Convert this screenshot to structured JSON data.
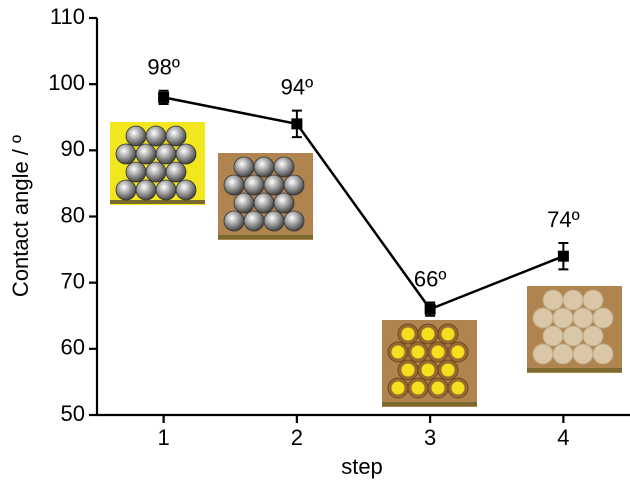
{
  "chart_data": {
    "type": "line",
    "x_label": "step",
    "y_label": "Contact angle / º",
    "x": [
      1,
      2,
      3,
      4
    ],
    "values": [
      98,
      94,
      66,
      74
    ],
    "errors": [
      1,
      2,
      1,
      2
    ],
    "value_labels": [
      "98º",
      "94º",
      "66º",
      "74º"
    ],
    "color": "#000000",
    "xlim": [
      0.5,
      4.5
    ],
    "xticks": [
      1,
      2,
      3,
      4
    ],
    "ylim": [
      50,
      110
    ],
    "yticks": [
      50,
      60,
      70,
      80,
      90,
      100,
      110
    ],
    "grid": false
  }
}
